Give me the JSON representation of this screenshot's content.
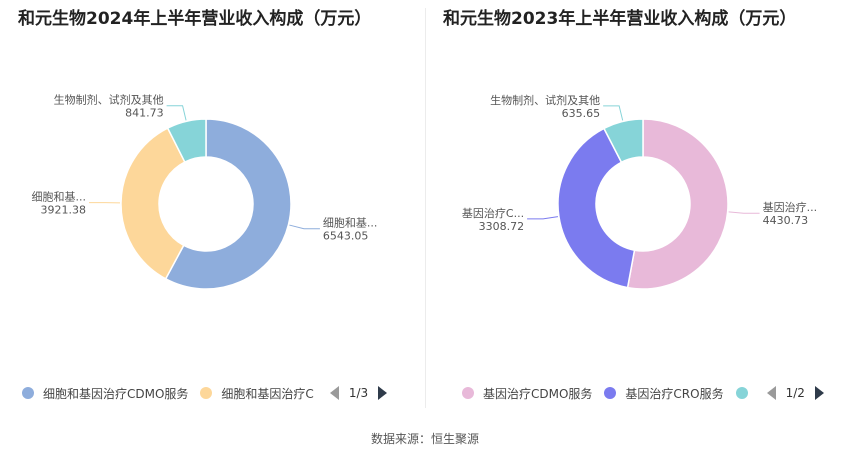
{
  "chart_data": [
    {
      "type": "pie",
      "title": "和元生物2024年上半年营业收入构成（万元）",
      "slices": [
        {
          "name": "细胞和基因治疗CDMO服务",
          "value": 6543.05,
          "color": "#8eaddc",
          "label": "细胞和基...",
          "value_label": "6543.05"
        },
        {
          "name": "细胞和基因治疗CRO服务",
          "value": 3921.38,
          "color": "#fdd79a",
          "label": "细胞和基...",
          "value_label": "3921.38"
        },
        {
          "name": "生物制剂、试剂及其他",
          "value": 841.73,
          "color": "#86d4d8",
          "label": "生物制剂、试剂及其他",
          "value_label": "841.73"
        }
      ],
      "legend": {
        "items": [
          {
            "text": "细胞和基因治疗CDMO服务",
            "color": "#8eaddc"
          },
          {
            "text": "细胞和基因治疗C",
            "color": "#fdd79a"
          }
        ],
        "page": "1/3"
      }
    },
    {
      "type": "pie",
      "title": "和元生物2023年上半年营业收入构成（万元）",
      "slices": [
        {
          "name": "基因治疗CDMO服务",
          "value": 4430.73,
          "color": "#e8b9d9",
          "label": "基因治疗...",
          "value_label": "4430.73"
        },
        {
          "name": "基因治疗CRO服务",
          "value": 3308.72,
          "color": "#7b7bef",
          "label": "基因治疗C...",
          "value_label": "3308.72"
        },
        {
          "name": "生物制剂、试剂及其他",
          "value": 635.65,
          "color": "#86d4d8",
          "label": "生物制剂、试剂及其他",
          "value_label": "635.65"
        }
      ],
      "legend": {
        "items": [
          {
            "text": "基因治疗CDMO服务",
            "color": "#e8b9d9"
          },
          {
            "text": "基因治疗CRO服务",
            "color": "#7b7bef"
          },
          {
            "text": "",
            "color": "#86d4d8"
          }
        ],
        "page": "1/2"
      }
    }
  ],
  "source": "数据来源：恒生聚源"
}
